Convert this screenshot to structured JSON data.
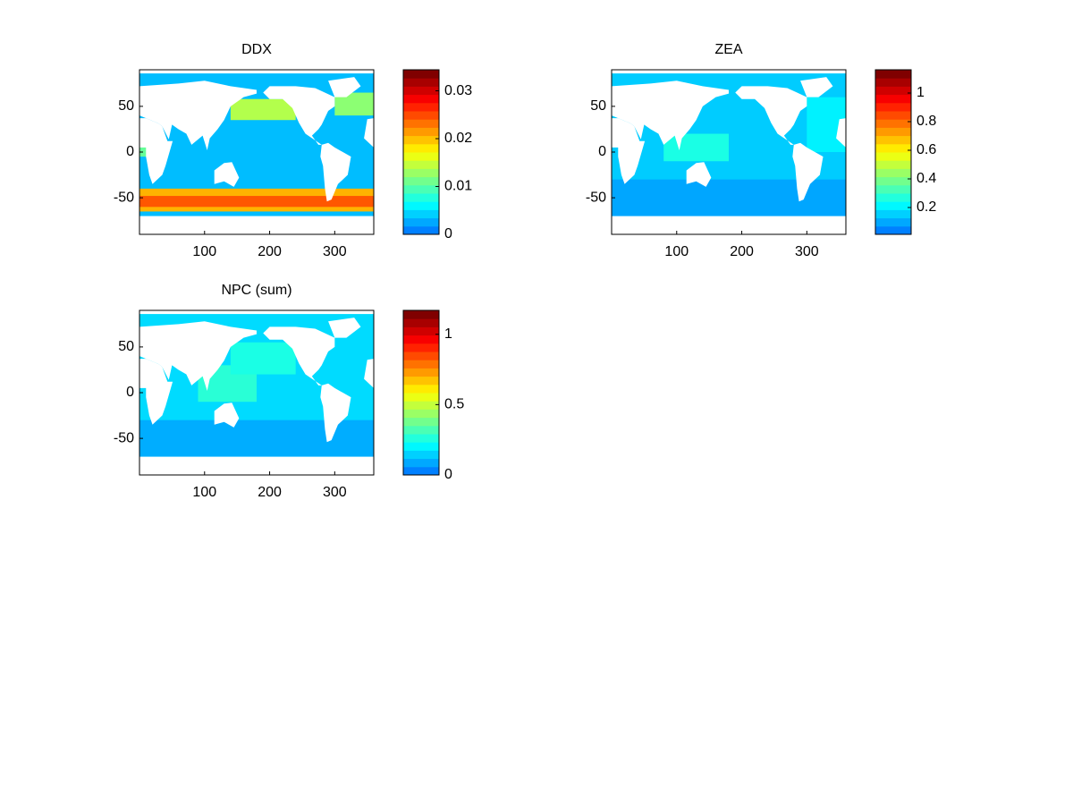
{
  "chart_data": [
    {
      "type": "heatmap",
      "title": "DDX",
      "xlim": [
        0,
        360
      ],
      "ylim": [
        -90,
        90
      ],
      "xticks": [
        100,
        200,
        300
      ],
      "yticks": [
        -50,
        0,
        50
      ],
      "clim": [
        0,
        0.0344
      ],
      "cticks": [
        0,
        0.01,
        0.02,
        0.03
      ]
    },
    {
      "type": "heatmap",
      "title": "ZEA",
      "xlim": [
        0,
        360
      ],
      "ylim": [
        -90,
        90
      ],
      "xticks": [
        100,
        200,
        300
      ],
      "yticks": [
        -50,
        0,
        50
      ],
      "clim": [
        0.0125,
        1.1625
      ],
      "cticks": [
        0.2,
        0.4,
        0.6,
        0.8,
        1
      ]
    },
    {
      "type": "heatmap",
      "title": "NPC (sum)",
      "xlim": [
        0,
        360
      ],
      "ylim": [
        -90,
        90
      ],
      "xticks": [
        100,
        200,
        300
      ],
      "yticks": [
        -50,
        0,
        50
      ],
      "clim": [
        0,
        1.17
      ],
      "cticks": [
        0,
        0.5,
        1
      ]
    }
  ]
}
